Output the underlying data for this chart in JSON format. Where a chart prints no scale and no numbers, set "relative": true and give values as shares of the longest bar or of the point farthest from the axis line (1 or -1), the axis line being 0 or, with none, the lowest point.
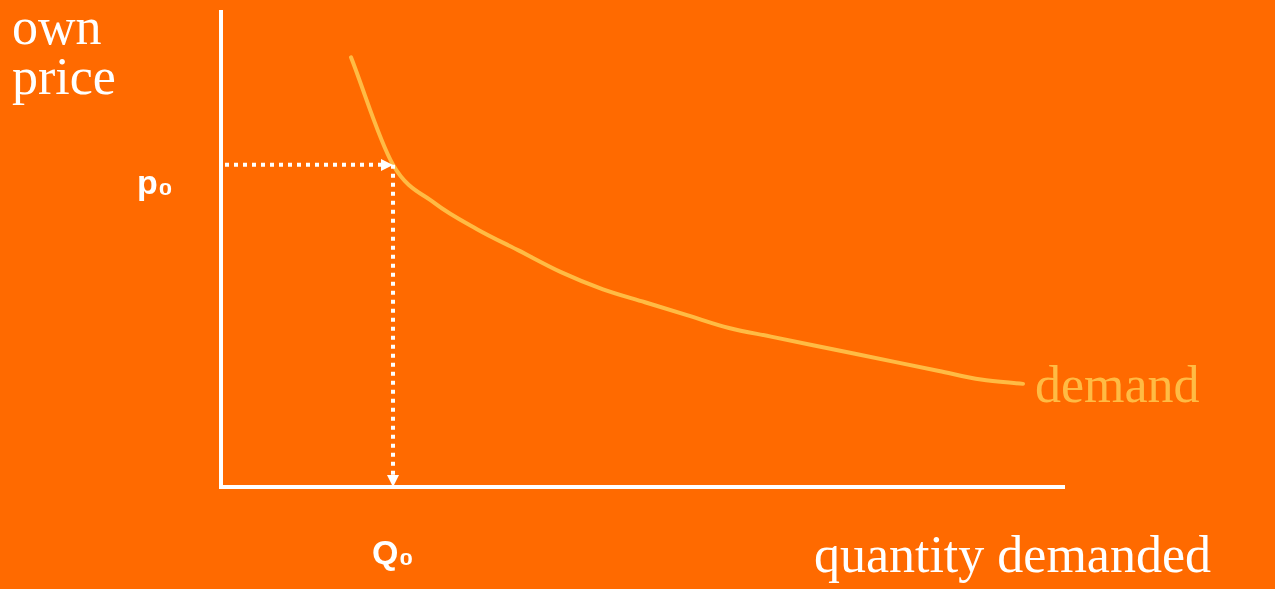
{
  "chart_data": {
    "type": "line",
    "relative": true,
    "xlabel": "quantity demanded",
    "ylabel": "own price",
    "categories": [
      null,
      null,
      null,
      null,
      null,
      null,
      null,
      null,
      null,
      null,
      null,
      null,
      null,
      null,
      null,
      null,
      null,
      null,
      null,
      null,
      null
    ],
    "annotations": [
      "Q₀"
    ],
    "series": [
      {
        "name": "demand",
        "color": "#ffbb44",
        "values": [
          null,
          null,
          null,
          1.0,
          0.75,
          0.66,
          0.6,
          0.55,
          0.5,
          0.46,
          0.43,
          0.4,
          0.37,
          0.35,
          0.33,
          0.31,
          0.29,
          0.27,
          0.25,
          0.24,
          null
        ]
      }
    ],
    "ref_lines": [
      {
        "axis": "y",
        "value": 0.75,
        "label": "p₀",
        "color": "#ffffff",
        "line_style": "dotted"
      }
    ],
    "legend": false,
    "marker": "none",
    "line_style": "solid"
  }
}
